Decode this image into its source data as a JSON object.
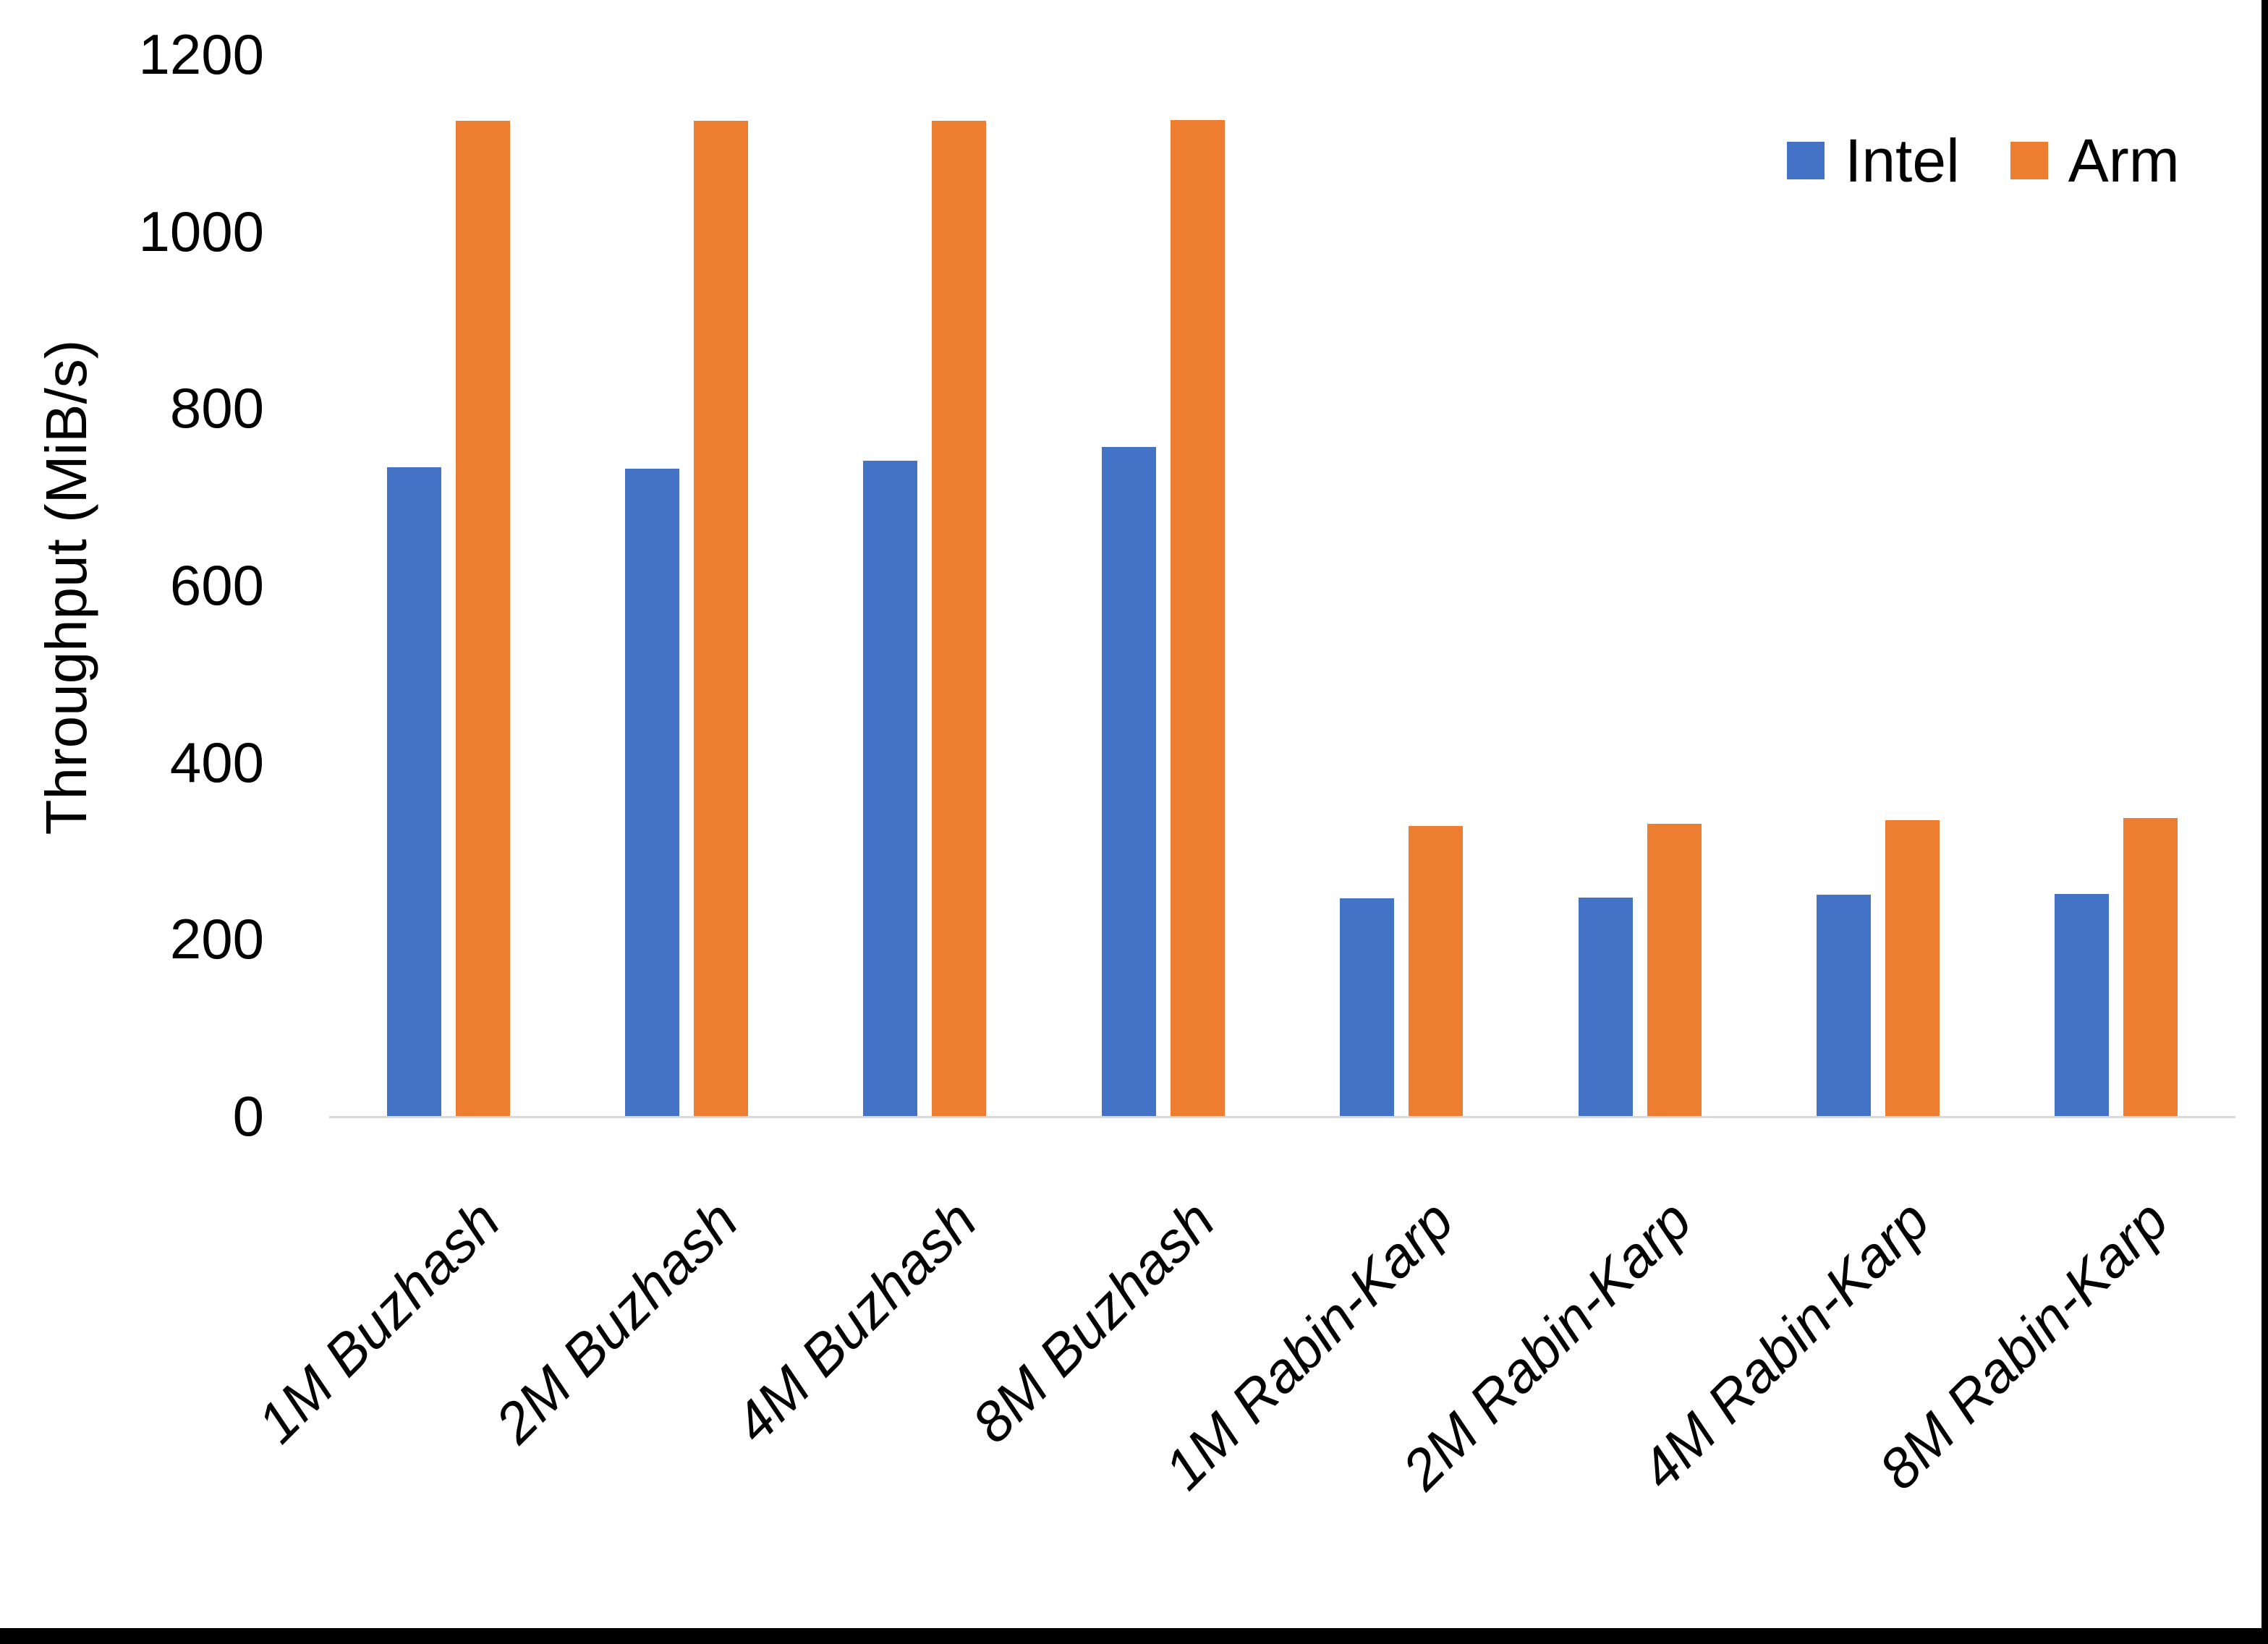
{
  "chart_data": {
    "type": "bar",
    "title": "",
    "xlabel": "",
    "ylabel": "Throughput (MiB/s)",
    "categories": [
      "1M Buzhash",
      "2M Buzhash",
      "4M Buzhash",
      "8M Buzhash",
      "1M Rabin-Karp",
      "2M Rabin-Karp",
      "4M Rabin-Karp",
      "8M Rabin-Karp"
    ],
    "series": [
      {
        "name": "Intel",
        "color": "#4472C4",
        "values": [
          733,
          732,
          741,
          756,
          246,
          247,
          250,
          251
        ]
      },
      {
        "name": "Arm",
        "color": "#ED7D31",
        "values": [
          1125,
          1125,
          1125,
          1126,
          328,
          330,
          334,
          337
        ]
      }
    ],
    "ylim": [
      0,
      1200
    ],
    "yticks": [
      0,
      200,
      400,
      600,
      800,
      1000,
      1200
    ],
    "grid": false,
    "legend_position": "top-right",
    "bar_color_intel": "#4472C4",
    "bar_color_arm": "#ED7D31",
    "axis_line_color": "#d9d9d9",
    "text_color": "#000000"
  }
}
